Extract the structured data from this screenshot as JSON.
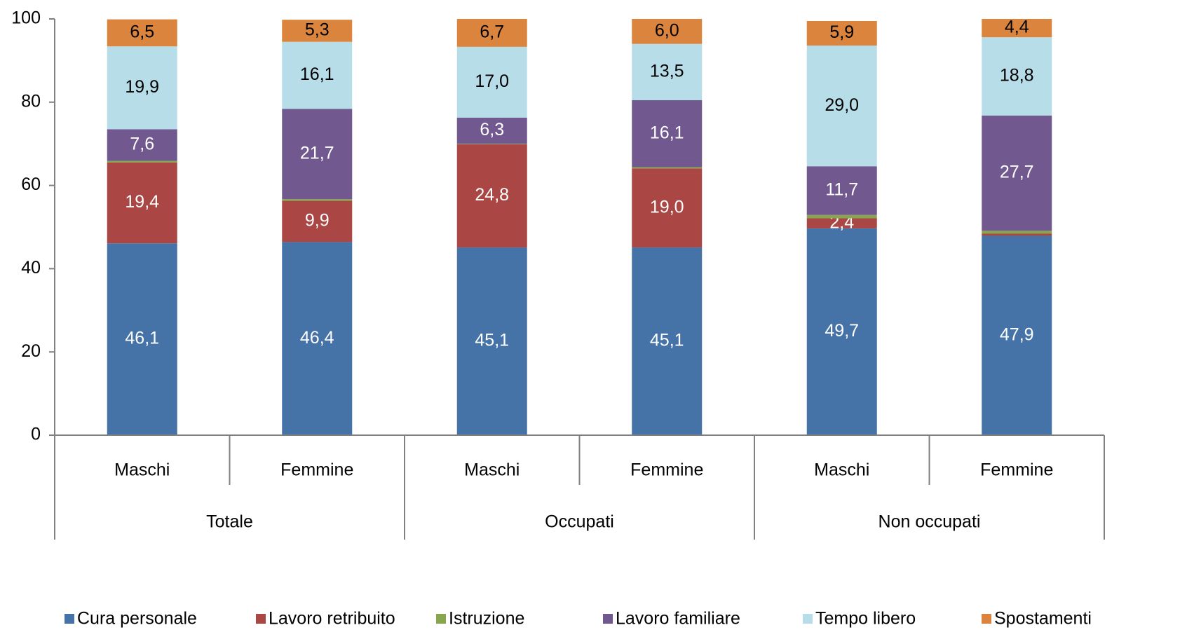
{
  "chart_data": {
    "type": "stacked_bar",
    "categories": [
      "Maschi",
      "Femmine",
      "Maschi",
      "Femmine",
      "Maschi",
      "Femmine"
    ],
    "groups": [
      "Totale",
      "Occupati",
      "Non occupati"
    ],
    "series": [
      {
        "name": "Cura personale",
        "color": "#4572a7",
        "values": [
          46.1,
          46.4,
          45.1,
          45.1,
          49.7,
          47.9
        ],
        "value_labels": [
          "46,1",
          "46,4",
          "45,1",
          "45,1",
          "49,7",
          "47,9"
        ]
      },
      {
        "name": "Lavoro retribuito",
        "color": "#aa4643",
        "values": [
          19.4,
          9.9,
          24.8,
          19.0,
          2.4,
          0.5
        ],
        "value_labels": [
          "19,4",
          "9,9",
          "24,8",
          "19,0",
          "2,4",
          null
        ]
      },
      {
        "name": "Istruzione",
        "color": "#89a54e",
        "values": [
          0.4,
          0.4,
          0.1,
          0.3,
          0.8,
          0.7
        ]
      },
      {
        "name": "Lavoro familiare",
        "color": "#71588f",
        "values": [
          7.6,
          21.7,
          6.3,
          16.1,
          11.7,
          27.7
        ],
        "value_labels": [
          "7,6",
          "21,7",
          "6,3",
          "16,1",
          "11,7",
          "27,7"
        ]
      },
      {
        "name": "Tempo libero",
        "color": "#b7dde8",
        "values": [
          19.9,
          16.1,
          17.0,
          13.5,
          29.0,
          18.8
        ],
        "value_labels": [
          "19,9",
          "16,1",
          "17,0",
          "13,5",
          "29,0",
          "18,8"
        ]
      },
      {
        "name": "Spostamenti",
        "color": "#db843d",
        "values": [
          6.5,
          5.3,
          6.7,
          6.0,
          5.9,
          4.4
        ],
        "value_labels": [
          "6,5",
          "5,3",
          "6,7",
          "6,0",
          "5,9",
          "4,4"
        ]
      }
    ],
    "ylim": [
      0,
      100
    ],
    "yticks": [
      0,
      20,
      40,
      60,
      80,
      100
    ],
    "grid": false,
    "legend": "bottom"
  }
}
